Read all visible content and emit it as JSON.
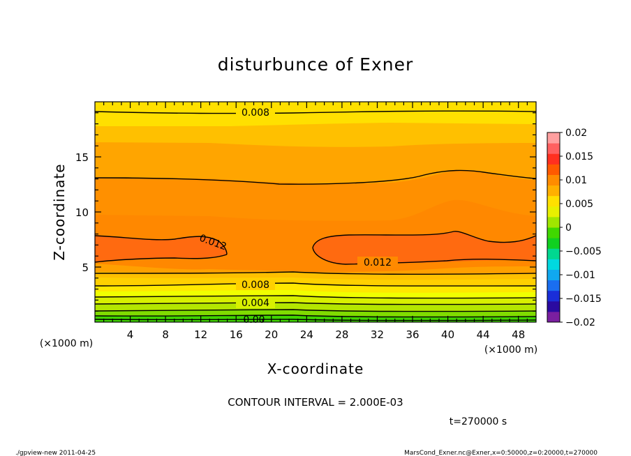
{
  "chart_data": {
    "type": "heatmap",
    "title": "disturbunce of Exner",
    "xlabel": "X-coordinate",
    "ylabel": "Z-coordinate",
    "x_unit_left": "(×1000 m)",
    "x_unit_right": "(×1000 m)",
    "xlim": [
      0,
      50
    ],
    "ylim": [
      0,
      20
    ],
    "x_ticks": [
      4,
      8,
      12,
      16,
      20,
      24,
      28,
      32,
      36,
      40,
      44,
      48
    ],
    "y_ticks": [
      5,
      10,
      15
    ],
    "contour_labels": [
      "0.008",
      "0.012",
      "0.012",
      "0.008",
      "0.004",
      "0.00"
    ],
    "contour_interval_text": "CONTOUR INTERVAL = 2.000E-03",
    "time_text": "t=270000 s",
    "colorbar": {
      "range": [
        -0.02,
        0.02
      ],
      "ticks": [
        "0.02",
        "0.015",
        "0.01",
        "0.005",
        "0",
        "−0.005",
        "−0.01",
        "−0.015",
        "−0.02"
      ]
    },
    "footer_left": "./gpview-new   2011-04-25",
    "footer_right": "MarsCond_Exner.nc@Exner,x=0:50000,z=0:20000,t=270000"
  }
}
